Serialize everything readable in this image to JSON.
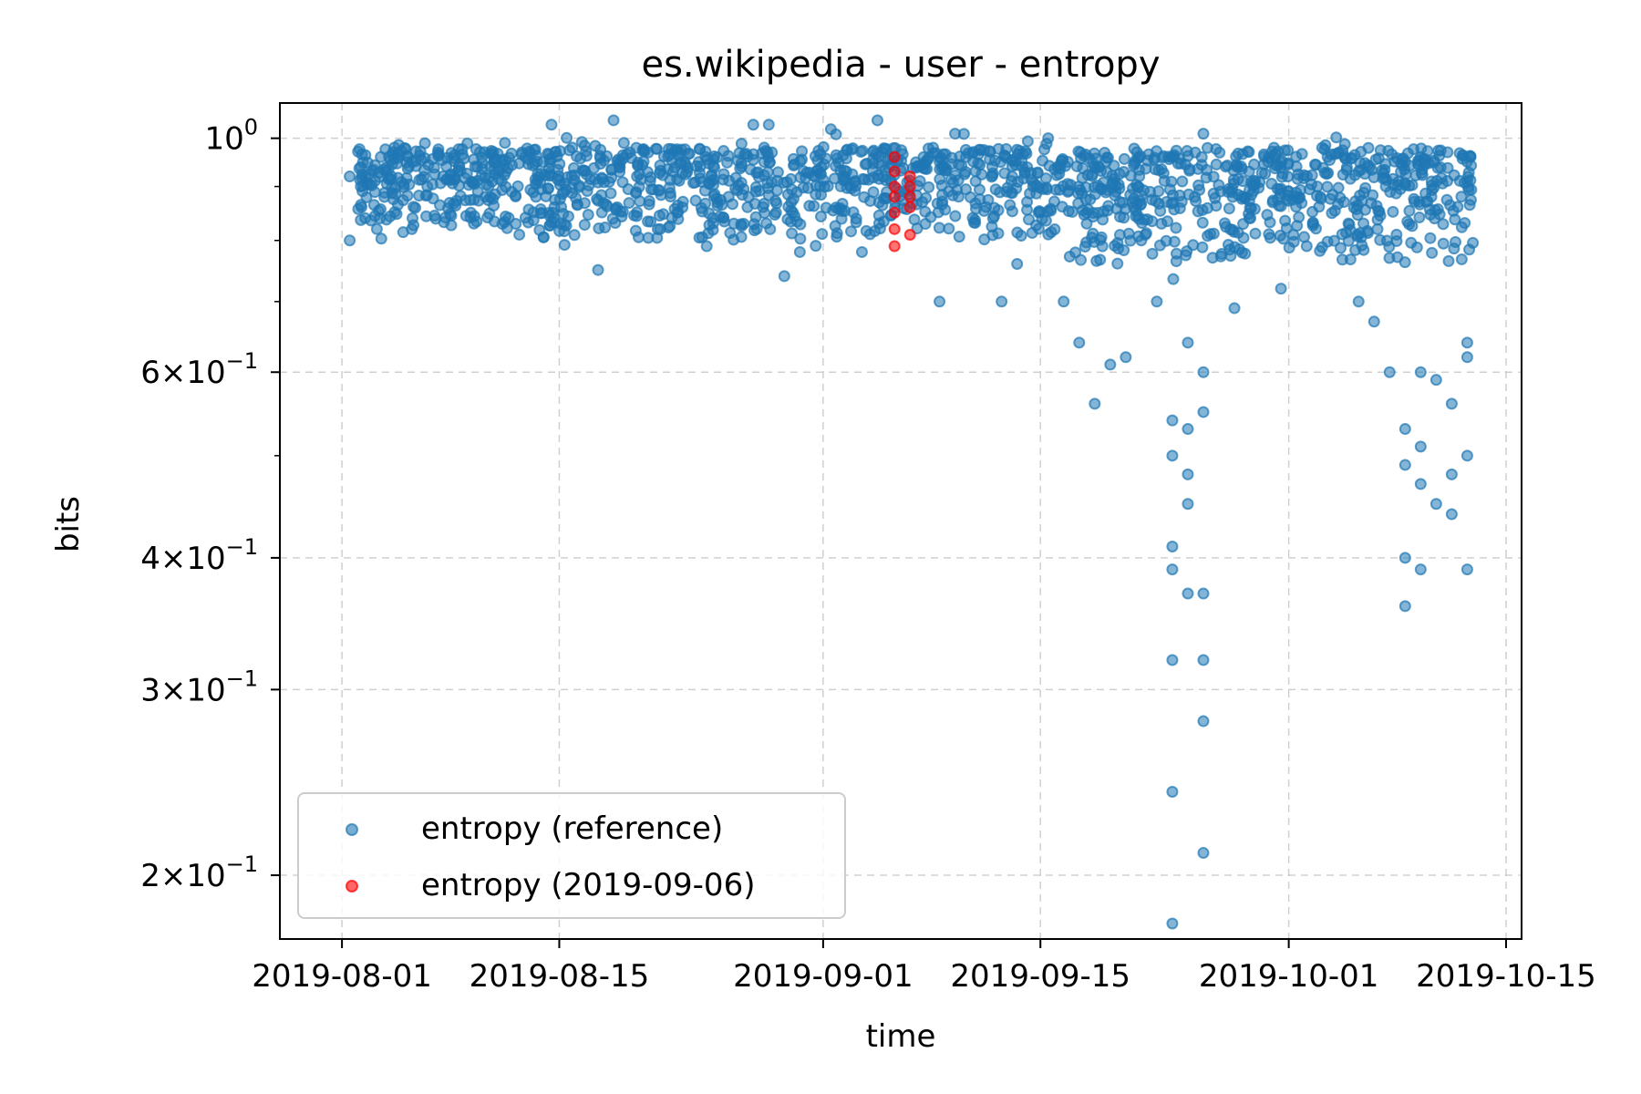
{
  "chart_data": {
    "type": "scatter",
    "title": "es.wikipedia - user - entropy",
    "xlabel": "time",
    "ylabel": "bits",
    "yscale": "log",
    "xlim": [
      "2019-07-28",
      "2019-10-16"
    ],
    "ylim": [
      0.174,
      1.08
    ],
    "grid": true,
    "legend_position": "lower-left",
    "x_ticks": [
      "2019-08-01",
      "2019-08-15",
      "2019-09-01",
      "2019-09-15",
      "2019-10-01",
      "2019-10-15"
    ],
    "y_ticks": [
      {
        "value": 1.0,
        "mantissa": "",
        "exponent": "0"
      },
      {
        "value": 0.6,
        "mantissa": "6",
        "exponent": "−1"
      },
      {
        "value": 0.4,
        "mantissa": "4",
        "exponent": "−1"
      },
      {
        "value": 0.3,
        "mantissa": "3",
        "exponent": "−1"
      },
      {
        "value": 0.2,
        "mantissa": "2",
        "exponent": "−1"
      }
    ],
    "series": [
      {
        "name": "entropy (reference)",
        "color": "#1f77b4",
        "x_range": [
          "2019-08-01",
          "2019-10-12"
        ],
        "typical_band": [
          0.8,
          0.98
        ],
        "points": [
          [
            "2019-08-01",
            0.92
          ],
          [
            "2019-08-01",
            0.8
          ],
          [
            "2019-08-02",
            0.84
          ],
          [
            "2019-08-03",
            0.96
          ],
          [
            "2019-08-05",
            0.82
          ],
          [
            "2019-08-06",
            0.9
          ],
          [
            "2019-08-09",
            0.83
          ],
          [
            "2019-08-11",
            0.99
          ],
          [
            "2019-08-13",
            0.88
          ],
          [
            "2019-08-14",
            1.03
          ],
          [
            "2019-08-17",
            0.75
          ],
          [
            "2019-08-18",
            1.04
          ],
          [
            "2019-08-21",
            0.82
          ],
          [
            "2019-08-24",
            0.79
          ],
          [
            "2019-08-27",
            1.03
          ],
          [
            "2019-08-28",
            1.03
          ],
          [
            "2019-08-29",
            0.74
          ],
          [
            "2019-08-30",
            0.78
          ],
          [
            "2019-09-01",
            1.02
          ],
          [
            "2019-09-03",
            0.78
          ],
          [
            "2019-09-04",
            1.04
          ],
          [
            "2019-09-08",
            0.95
          ],
          [
            "2019-09-08",
            0.7
          ],
          [
            "2019-09-09",
            1.01
          ],
          [
            "2019-09-12",
            0.7
          ],
          [
            "2019-09-13",
            0.76
          ],
          [
            "2019-09-15",
            1.0
          ],
          [
            "2019-09-16",
            0.7
          ],
          [
            "2019-09-17",
            0.64
          ],
          [
            "2019-09-18",
            0.56
          ],
          [
            "2019-09-19",
            0.61
          ],
          [
            "2019-09-20",
            0.62
          ],
          [
            "2019-09-21",
            0.8
          ],
          [
            "2019-09-22",
            0.7
          ],
          [
            "2019-09-23",
            0.54
          ],
          [
            "2019-09-23",
            0.5
          ],
          [
            "2019-09-23",
            0.41
          ],
          [
            "2019-09-23",
            0.39
          ],
          [
            "2019-09-24",
            0.37
          ],
          [
            "2019-09-23",
            0.32
          ],
          [
            "2019-09-23",
            0.24
          ],
          [
            "2019-09-23",
            0.18
          ],
          [
            "2019-09-24",
            0.45
          ],
          [
            "2019-09-24",
            0.48
          ],
          [
            "2019-09-24",
            0.64
          ],
          [
            "2019-09-24",
            0.53
          ],
          [
            "2019-09-25",
            0.6
          ],
          [
            "2019-09-25",
            0.55
          ],
          [
            "2019-09-25",
            0.32
          ],
          [
            "2019-09-25",
            0.28
          ],
          [
            "2019-09-25",
            0.21
          ],
          [
            "2019-09-25",
            0.37
          ],
          [
            "2019-09-25",
            1.01
          ],
          [
            "2019-09-27",
            0.69
          ],
          [
            "2019-09-30",
            0.72
          ],
          [
            "2019-10-01",
            0.94
          ],
          [
            "2019-10-03",
            0.96
          ],
          [
            "2019-10-05",
            0.7
          ],
          [
            "2019-10-06",
            0.67
          ],
          [
            "2019-10-07",
            0.6
          ],
          [
            "2019-10-08",
            0.95
          ],
          [
            "2019-10-08",
            0.53
          ],
          [
            "2019-10-08",
            0.49
          ],
          [
            "2019-10-08",
            0.4
          ],
          [
            "2019-10-08",
            0.36
          ],
          [
            "2019-10-09",
            0.47
          ],
          [
            "2019-10-09",
            0.51
          ],
          [
            "2019-10-09",
            0.39
          ],
          [
            "2019-10-09",
            0.6
          ],
          [
            "2019-10-09",
            0.96
          ],
          [
            "2019-10-10",
            0.45
          ],
          [
            "2019-10-10",
            0.59
          ],
          [
            "2019-10-11",
            0.44
          ],
          [
            "2019-10-11",
            0.48
          ],
          [
            "2019-10-11",
            0.56
          ],
          [
            "2019-10-12",
            0.39
          ],
          [
            "2019-10-12",
            0.5
          ],
          [
            "2019-10-12",
            0.62
          ],
          [
            "2019-10-12",
            0.64
          ],
          [
            "2019-10-12",
            0.91
          ]
        ]
      },
      {
        "name": "entropy (2019-09-06)",
        "color": "#ff0000",
        "x_range": [
          "2019-09-05",
          "2019-09-06"
        ],
        "points": [
          [
            "2019-09-05",
            0.96
          ],
          [
            "2019-09-05",
            0.93
          ],
          [
            "2019-09-05",
            0.9
          ],
          [
            "2019-09-05",
            0.88
          ],
          [
            "2019-09-05",
            0.85
          ],
          [
            "2019-09-05",
            0.82
          ],
          [
            "2019-09-05",
            0.79
          ],
          [
            "2019-09-06",
            0.92
          ],
          [
            "2019-09-06",
            0.9
          ],
          [
            "2019-09-06",
            0.88
          ],
          [
            "2019-09-06",
            0.86
          ],
          [
            "2019-09-06",
            0.81
          ]
        ]
      }
    ]
  }
}
